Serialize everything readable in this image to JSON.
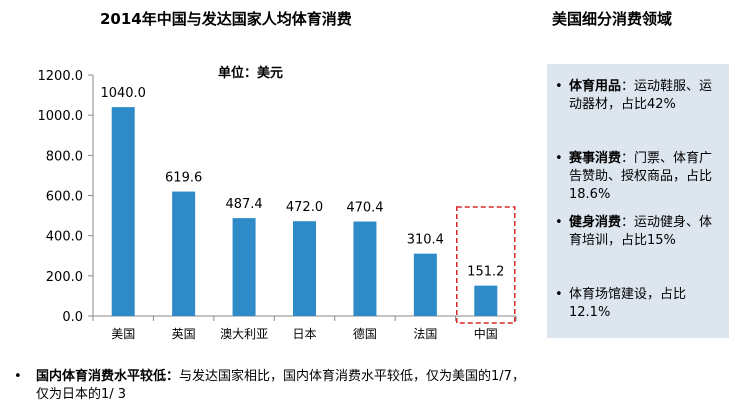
{
  "left_title": "2014年中国与发达国家人均体育消费",
  "right_title": "美国细分消费领域",
  "unit_label": "单位：美元",
  "chart_data": {
    "type": "bar",
    "categories": [
      "美国",
      "英国",
      "澳大利亚",
      "日本",
      "德国",
      "法国",
      "中国"
    ],
    "values": [
      1040.0,
      619.6,
      487.4,
      472.0,
      470.4,
      310.4,
      151.2
    ],
    "value_labels": [
      "1040.0",
      "619.6",
      "487.4",
      "472.0",
      "470.4",
      "310.4",
      "151.2"
    ],
    "y_ticks": [
      "0.0",
      "200.0",
      "400.0",
      "600.0",
      "800.0",
      "1000.0",
      "1200.0"
    ],
    "ylim": [
      0,
      1200
    ],
    "highlight_category": "中国",
    "bar_color": "#2e8bc7",
    "highlight_border_color": "#d9262c",
    "grid": false
  },
  "panel": {
    "bullet": "•",
    "items": [
      {
        "key": "体育用品",
        "sep": "：",
        "text": "运动鞋服、运动器材，占比42%"
      },
      {
        "key": "赛事消费",
        "sep": "：",
        "text": "门票、体育广告赞助、授权商品，占比18.6%"
      },
      {
        "key": "健身消费",
        "sep": "：",
        "text": "运动健身、体育培训，占比15%"
      },
      {
        "key": "",
        "sep": "",
        "text": "体育场馆建设，占比12.1%"
      }
    ],
    "background_color": "#dde5ef"
  },
  "note": {
    "bullet": "•",
    "key": "国内体育消费水平较低：",
    "text": "与发达国家相比，国内体育消费水平较低，仅为美国的1/7，仅为日本的1/ 3"
  }
}
